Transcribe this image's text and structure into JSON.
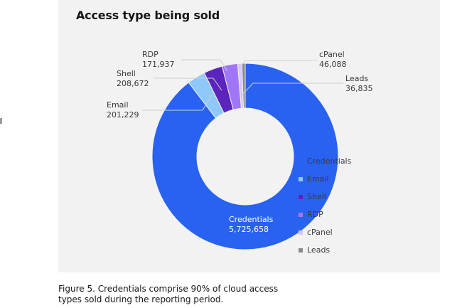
{
  "chart_data": {
    "type": "pie",
    "variant": "donut",
    "title": "Access type being sold",
    "categories": [
      "Credentials",
      "Email",
      "Shell",
      "RDP",
      "cPanel",
      "Leads"
    ],
    "values": [
      5725658,
      201229,
      208672,
      171937,
      46088,
      36835
    ],
    "value_labels": [
      "5,725,658",
      "201,229",
      "208,672",
      "171,937",
      "46,088",
      "36,835"
    ],
    "colors": [
      "#2962f0",
      "#8fc8fb",
      "#5a24bd",
      "#a076f6",
      "#d6c8fa",
      "#8a8a8a"
    ],
    "start": "top",
    "direction": "clockwise",
    "legend": {
      "position": "right",
      "entries": [
        "Credentials",
        "Email",
        "Shell",
        "RDP",
        "cPanel",
        "Leads"
      ]
    }
  },
  "caption": {
    "line1": "Figure 5. Credentials comprise 90% of cloud access",
    "line2": "types sold during the reporting period."
  }
}
